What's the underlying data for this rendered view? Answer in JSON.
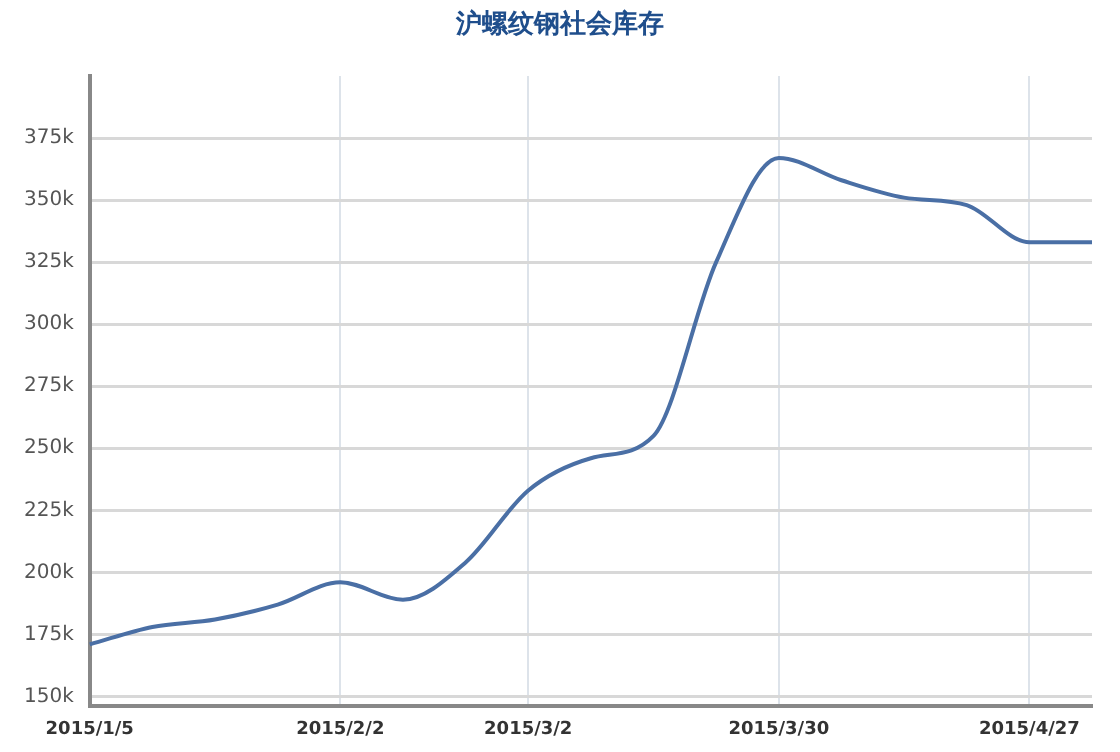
{
  "chart_data": {
    "type": "line",
    "title": "沪螺纹钢社会库存",
    "categories": [
      "2015/1/5",
      null,
      null,
      null,
      "2015/2/2",
      null,
      null,
      "2015/3/2",
      null,
      null,
      null,
      "2015/3/30",
      null,
      null,
      null,
      "2015/4/27",
      null
    ],
    "series": [
      {
        "color": "#4a6fa5",
        "values": [
          171000,
          178000,
          181000,
          187000,
          196000,
          189000,
          204000,
          233000,
          246000,
          255000,
          325000,
          367000,
          358000,
          351000,
          348000,
          333000,
          333000
        ]
      }
    ],
    "ylim": [
      146000,
      400000
    ],
    "yticks": [
      {
        "value": 150000,
        "label": "150k"
      },
      {
        "value": 175000,
        "label": "175k"
      },
      {
        "value": 200000,
        "label": "200k"
      },
      {
        "value": 225000,
        "label": "225k"
      },
      {
        "value": 250000,
        "label": "250k"
      },
      {
        "value": 275000,
        "label": "275k"
      },
      {
        "value": 300000,
        "label": "300k"
      },
      {
        "value": 325000,
        "label": "325k"
      },
      {
        "value": 350000,
        "label": "350k"
      },
      {
        "value": 375000,
        "label": "375k"
      }
    ],
    "grid": true,
    "legend": false,
    "marker": "none",
    "line_style": "solid"
  }
}
